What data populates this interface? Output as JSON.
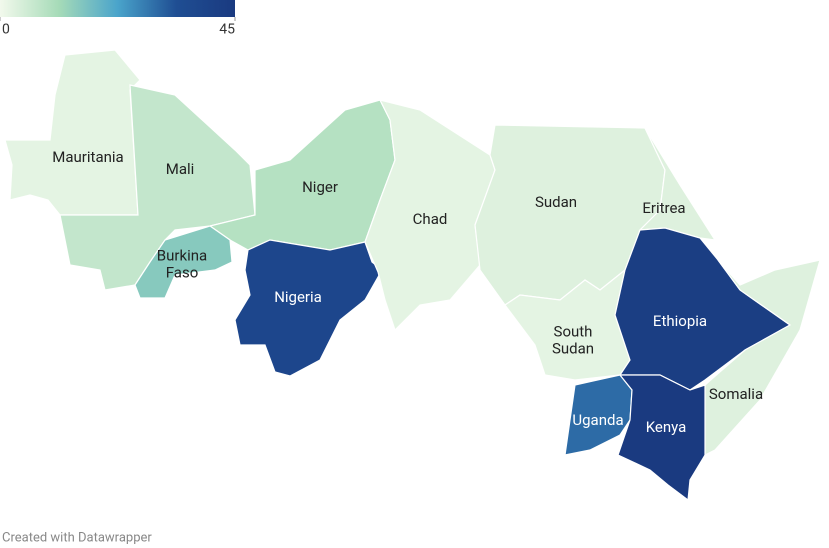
{
  "map": {
    "type": "choropleth",
    "legend": {
      "range": [
        0,
        45
      ],
      "ticks": [
        0,
        45
      ],
      "colors": [
        "#f2f9ec",
        "#a6dbb8",
        "#4aa4cb",
        "#1f4e93",
        "#1a3a80"
      ]
    },
    "regions": [
      {
        "name": "Mauritania",
        "value": 2
      },
      {
        "name": "Mali",
        "value": 7
      },
      {
        "name": "Niger",
        "value": 9
      },
      {
        "name": "Burkina Faso",
        "value": 15
      },
      {
        "name": "Nigeria",
        "value": 38
      },
      {
        "name": "Chad",
        "value": 2
      },
      {
        "name": "Sudan",
        "value": 3
      },
      {
        "name": "Eritrea",
        "value": 3
      },
      {
        "name": "South Sudan",
        "value": 2
      },
      {
        "name": "Ethiopia",
        "value": 43
      },
      {
        "name": "Somalia",
        "value": 3
      },
      {
        "name": "Uganda",
        "value": 30
      },
      {
        "name": "Kenya",
        "value": 45
      }
    ],
    "footer": "Created with Datawrapper"
  }
}
